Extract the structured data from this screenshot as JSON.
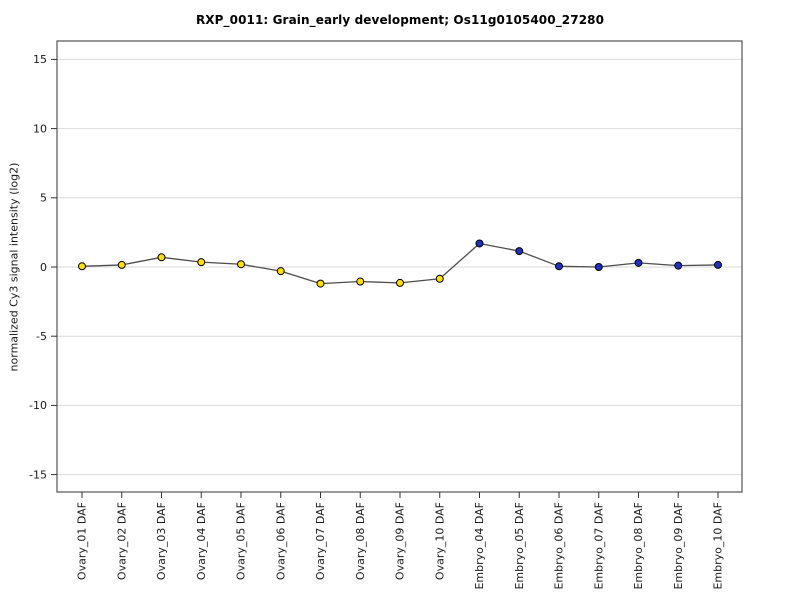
{
  "chart_data": {
    "type": "line",
    "title": "RXP_0011: Grain_early development; Os11g0105400_27280",
    "ylabel": "normalized Cy3 signal intensity (log2)",
    "xlabel": "",
    "ylim": [
      -16.3,
      16.3
    ],
    "yticks": [
      15,
      10,
      5,
      0,
      -5,
      -10,
      -15
    ],
    "grid": true,
    "legend": "none",
    "categories": [
      "Ovary_01 DAF",
      "Ovary_02 DAF",
      "Ovary_03 DAF",
      "Ovary_04 DAF",
      "Ovary_05 DAF",
      "Ovary_06 DAF",
      "Ovary_07 DAF",
      "Ovary_08 DAF",
      "Ovary_09 DAF",
      "Ovary_10 DAF",
      "Embryo_04 DAF",
      "Embryo_05 DAF",
      "Embryo_06 DAF",
      "Embryo_07 DAF",
      "Embryo_08 DAF",
      "Embryo_09 DAF",
      "Embryo_10 DAF"
    ],
    "values": [
      0.05,
      0.15,
      0.7,
      0.35,
      0.2,
      -0.3,
      -1.2,
      -1.05,
      -1.15,
      -0.85,
      1.7,
      1.15,
      0.05,
      0.0,
      0.3,
      0.1,
      0.15
    ],
    "point_groups": [
      "ovary",
      "ovary",
      "ovary",
      "ovary",
      "ovary",
      "ovary",
      "ovary",
      "ovary",
      "ovary",
      "ovary",
      "embryo",
      "embryo",
      "embryo",
      "embryo",
      "embryo",
      "embryo",
      "embryo"
    ],
    "group_colors": {
      "ovary": "#FFE000",
      "embryo": "#2030C0"
    },
    "line_color": "#4d4d4d",
    "point_stroke": "#000000",
    "grid_color": "#d9d9d9",
    "box_color": "#555555",
    "tick_color": "#333333",
    "text_color": "#1a1a1a"
  }
}
